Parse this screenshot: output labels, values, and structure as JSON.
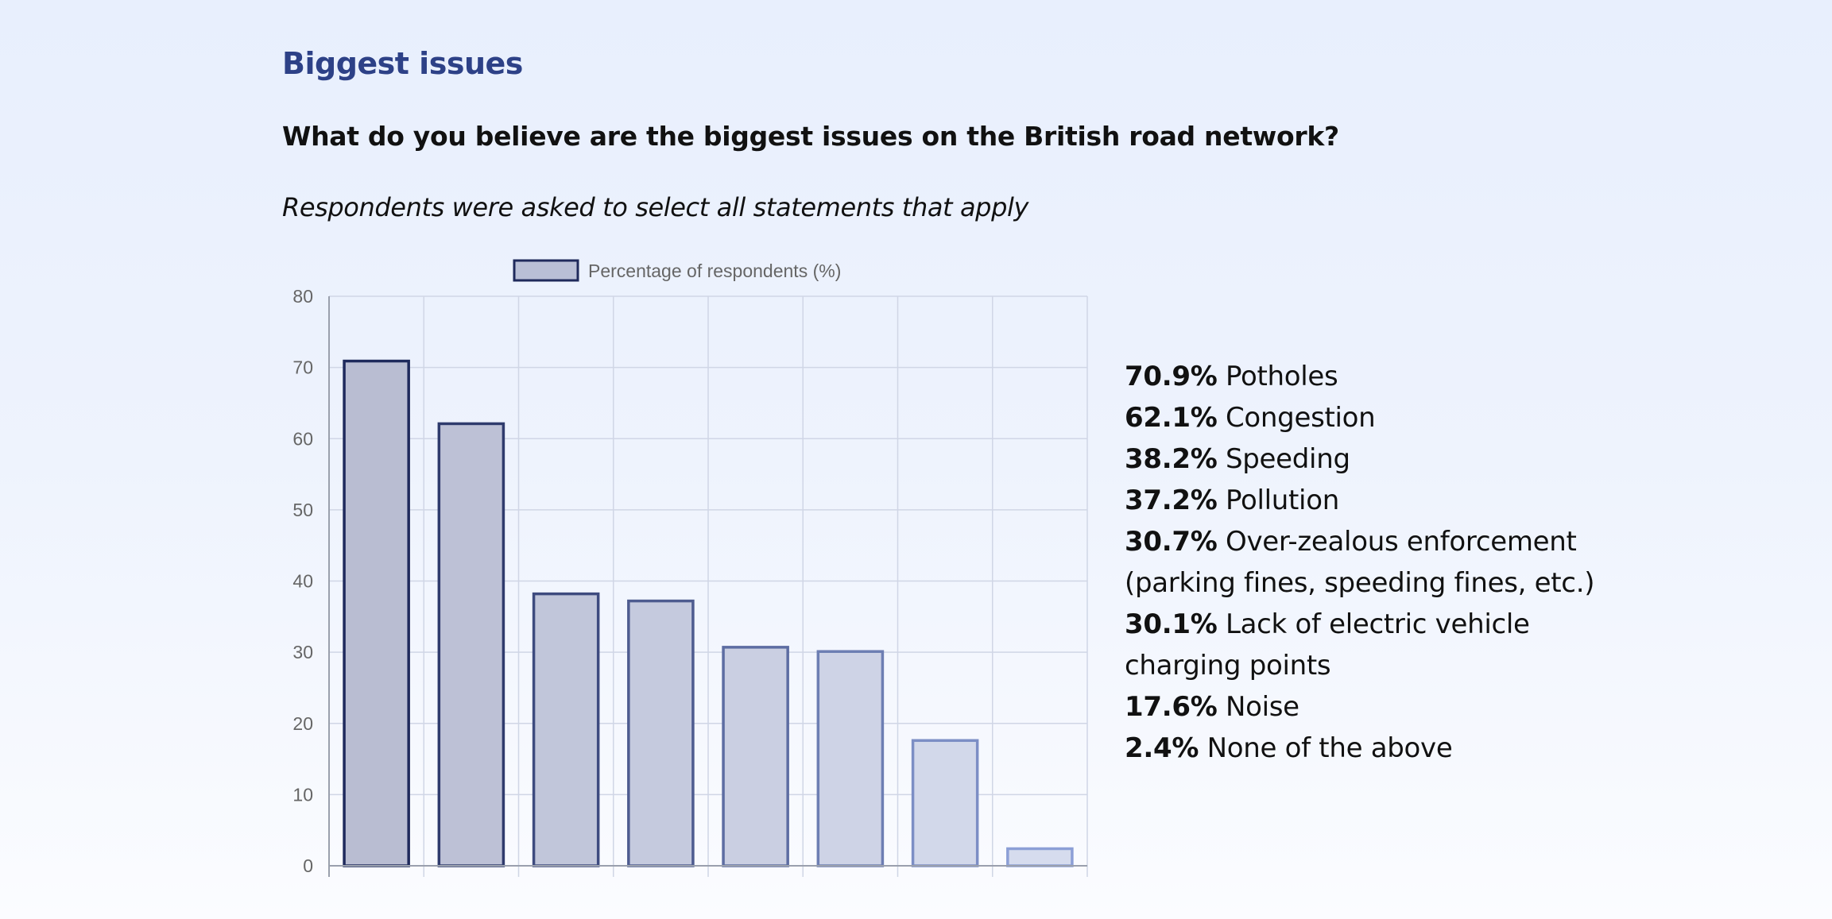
{
  "heading": "Biggest issues",
  "question": "What do you believe are the biggest issues on the British road network?",
  "note": "Respondents were asked to select all statements that apply",
  "results": [
    {
      "pct": "70.9%",
      "label": "Potholes"
    },
    {
      "pct": "62.1%",
      "label": "Congestion"
    },
    {
      "pct": "38.2%",
      "label": "Speeding"
    },
    {
      "pct": "37.2%",
      "label": "Pollution"
    },
    {
      "pct": "30.7%",
      "label": "Over-zealous enforcement (parking fines, speeding fines, etc.)"
    },
    {
      "pct": "30.1%",
      "label": "Lack of electric vehicle charging points"
    },
    {
      "pct": "17.6%",
      "label": "Noise"
    },
    {
      "pct": "2.4%",
      "label": "None of the above"
    }
  ],
  "chart_data": {
    "type": "bar",
    "title": "",
    "xlabel": "",
    "ylabel": "",
    "categories": [
      "",
      "",
      "",
      "",
      "",
      "",
      "",
      ""
    ],
    "series": [
      {
        "name": "Percentage of respondents (%)",
        "values": [
          70.9,
          62.1,
          38.2,
          37.2,
          30.7,
          30.1,
          17.6,
          2.4
        ]
      }
    ],
    "ylim": [
      0,
      80
    ],
    "yticks": [
      0,
      10,
      20,
      30,
      40,
      50,
      60,
      70,
      80
    ],
    "grid": true,
    "legend": "top-center",
    "colors": {
      "bar_fill": "#b9bfd6",
      "bar_stroke_dark": "#1f2a5c",
      "bar_stroke_light": "#8c9fd6",
      "grid": "#d0d6e6",
      "axis": "#9aa0ad",
      "tick_text": "#666666"
    }
  }
}
